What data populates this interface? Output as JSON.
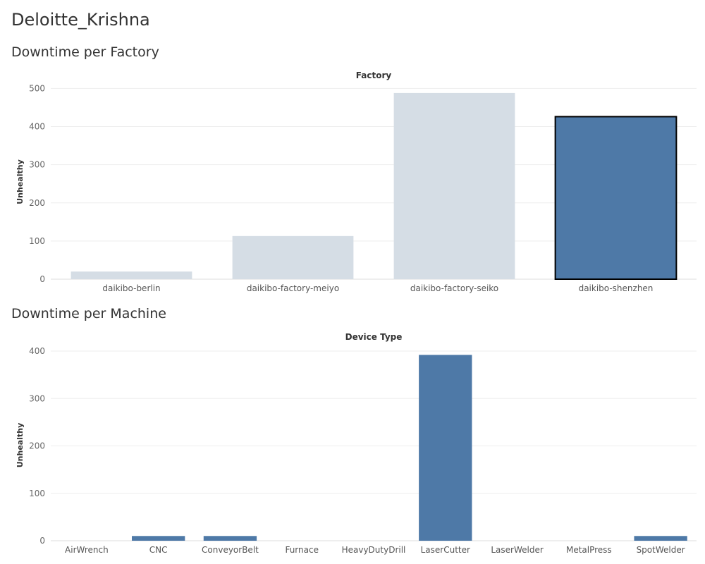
{
  "dashboard": {
    "title": "Deloitte_Krishna"
  },
  "chart_data": [
    {
      "type": "bar",
      "title": "Downtime per Factory",
      "column_header": "Factory",
      "ylabel": "Unhealthy",
      "categories": [
        "daikibo-berlin",
        "daikibo-factory-meiyo",
        "daikibo-factory-seiko",
        "daikibo-shenzhen"
      ],
      "values": [
        20,
        113,
        488,
        426
      ],
      "ylim": [
        0,
        510
      ],
      "yticks": [
        0,
        100,
        200,
        300,
        400,
        500
      ],
      "grid": true,
      "highlighted": "daikibo-shenzhen",
      "colors": {
        "highlight": "#4e79a7",
        "muted": "#d5dde5",
        "outline": "#000000"
      }
    },
    {
      "type": "bar",
      "title": "Downtime per Machine",
      "column_header": "Device Type",
      "ylabel": "Unhealthy",
      "categories": [
        "AirWrench",
        "CNC",
        "ConveyorBelt",
        "Furnace",
        "HeavyDutyDrill",
        "LaserCutter",
        "LaserWelder",
        "MetalPress",
        "SpotWelder"
      ],
      "values": [
        0,
        10,
        10,
        0,
        0,
        392,
        0,
        0,
        10
      ],
      "ylim": [
        0,
        403
      ],
      "yticks": [
        0,
        100,
        200,
        300,
        400
      ],
      "grid": true,
      "colors": {
        "bar": "#4e79a7"
      }
    }
  ]
}
